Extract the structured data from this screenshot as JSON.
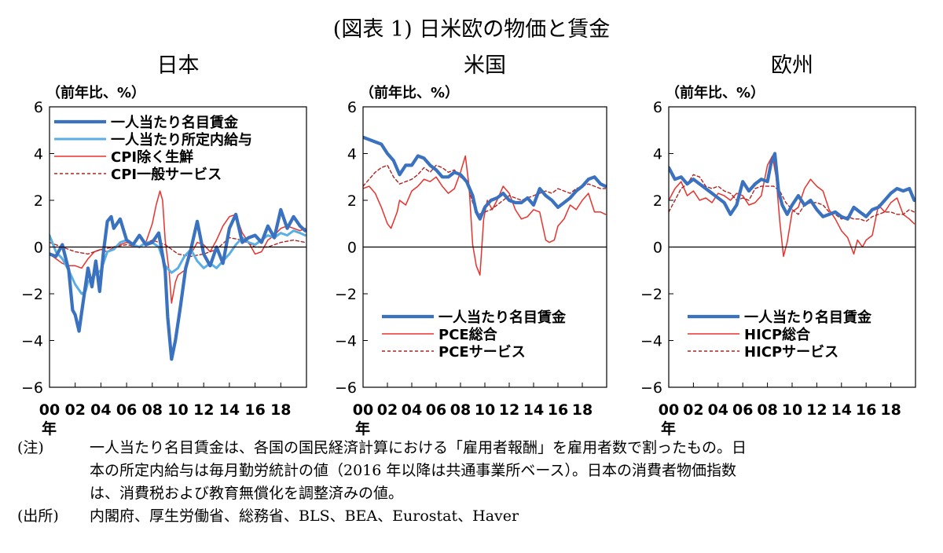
{
  "figure": {
    "title": "(図表 1) 日米欧の物価と賃金",
    "x_unit_label": "年",
    "y_unit_label": "（前年比、%）"
  },
  "notes": {
    "note_label": "(注)",
    "note_lines": [
      "一人当たり名目賃金は、各国の国民経済計算における「雇用者報酬」を雇用者数で割ったもの。日",
      "本の所定内給与は毎月勤労統計の値（2016 年以降は共通事業所ベース）。日本の消費者物価指数",
      "は、消費税および教育無償化を調整済みの値。"
    ],
    "source_label": "(出所)",
    "source_text": "内閣府、厚生労働省、総務省、BLS、BEA、Eurostat、Haver"
  },
  "colors": {
    "wage": "#3a72bf",
    "scheduled": "#5aaee3",
    "price": "#e8322d",
    "service": "#b02420",
    "axis": "#000000"
  },
  "chart_data": [
    {
      "type": "line",
      "title": "日本",
      "ylabel": "（前年比、%）",
      "xlabel": "年",
      "ylim": [
        -6,
        6
      ],
      "yticks": [
        6,
        4,
        2,
        0,
        -2,
        -4,
        -6
      ],
      "xlim": [
        2000,
        2020
      ],
      "xticks": [
        "00",
        "02",
        "04",
        "06",
        "08",
        "10",
        "12",
        "14",
        "16",
        "18"
      ],
      "legend_position": "top-left",
      "series": [
        {
          "name": "一人当たり名目賃金",
          "style": "wage",
          "x": [
            2000,
            2000.5,
            2001,
            2001.5,
            2001.8,
            2002,
            2002.3,
            2002.5,
            2003,
            2003.3,
            2003.6,
            2003.9,
            2004.2,
            2004.5,
            2004.8,
            2005,
            2005.5,
            2006,
            2006.5,
            2007,
            2007.5,
            2008,
            2008.5,
            2009,
            2009.2,
            2009.5,
            2009.8,
            2010.2,
            2010.6,
            2011,
            2011.5,
            2012,
            2012.5,
            2013,
            2013.5,
            2014,
            2014.5,
            2015,
            2015.5,
            2016,
            2016.5,
            2017,
            2017.5,
            2018,
            2018.5,
            2019,
            2019.5,
            2019.9
          ],
          "y": [
            -0.3,
            -0.4,
            0.1,
            -1.0,
            -2.7,
            -2.9,
            -3.6,
            -2.8,
            -0.9,
            -1.7,
            -0.6,
            -1.9,
            -0.2,
            1.1,
            1.3,
            0.8,
            1.2,
            0.3,
            0.1,
            0.5,
            0.1,
            0.2,
            0.6,
            -1.0,
            -3.0,
            -4.8,
            -4.0,
            -2.5,
            -0.9,
            -0.1,
            1.1,
            -0.3,
            -0.8,
            0.0,
            -0.7,
            0.8,
            1.4,
            0.2,
            0.4,
            0.5,
            0.2,
            0.9,
            0.4,
            1.6,
            0.8,
            1.3,
            0.9,
            0.7
          ]
        },
        {
          "name": "一人当たり所定内給与",
          "style": "scheduled",
          "x": [
            2000,
            2000.5,
            2001,
            2001.5,
            2002,
            2002.5,
            2002.8,
            2003,
            2003.5,
            2004,
            2004.5,
            2005,
            2005.5,
            2006,
            2006.5,
            2007,
            2007.5,
            2008,
            2008.5,
            2009,
            2009.5,
            2010,
            2010.5,
            2011,
            2011.5,
            2012,
            2012.5,
            2013,
            2013.5,
            2014,
            2014.5,
            2015,
            2015.5,
            2016,
            2016.5,
            2017,
            2017.5,
            2018,
            2018.5,
            2019,
            2019.5,
            2019.9
          ],
          "y": [
            0.5,
            -0.2,
            -0.5,
            -1.0,
            -1.6,
            -2.0,
            -1.9,
            -1.5,
            -1.2,
            -1.0,
            -0.2,
            -0.1,
            0.2,
            0.3,
            0.1,
            0.0,
            0.2,
            0.2,
            0.0,
            -0.8,
            -1.1,
            -0.9,
            -0.4,
            -0.1,
            -0.6,
            -0.9,
            -0.7,
            -0.9,
            -0.6,
            -0.3,
            0.1,
            0.4,
            0.2,
            0.1,
            0.3,
            0.5,
            0.4,
            0.6,
            0.5,
            0.7,
            0.6,
            0.5
          ]
        },
        {
          "name": "CPI除く生鮮",
          "style": "price",
          "x": [
            2000,
            2000.5,
            2001,
            2001.5,
            2002,
            2002.5,
            2003,
            2003.5,
            2004,
            2004.5,
            2005,
            2005.5,
            2006,
            2006.5,
            2007,
            2007.5,
            2008,
            2008.3,
            2008.6,
            2008.8,
            2009,
            2009.3,
            2009.5,
            2009.8,
            2010,
            2010.5,
            2011,
            2011.5,
            2012,
            2012.5,
            2013,
            2013.5,
            2014,
            2014.5,
            2015,
            2015.5,
            2016,
            2016.5,
            2017,
            2017.5,
            2018,
            2018.5,
            2019,
            2019.5,
            2019.9
          ],
          "y": [
            -0.3,
            -0.5,
            -0.7,
            -0.8,
            -0.8,
            -0.9,
            -0.5,
            -0.2,
            -0.1,
            -0.2,
            0.0,
            0.1,
            0.2,
            0.1,
            0.0,
            0.2,
            1.0,
            1.8,
            2.4,
            2.0,
            0.3,
            -1.0,
            -2.4,
            -1.5,
            -1.2,
            -1.0,
            -0.3,
            0.2,
            0.1,
            -0.2,
            0.3,
            0.9,
            1.3,
            1.4,
            0.6,
            0.2,
            -0.3,
            -0.2,
            0.3,
            0.5,
            0.8,
            0.9,
            0.8,
            0.7,
            0.8
          ]
        },
        {
          "name": "CPI一般サービス",
          "style": "service",
          "x": [
            2000,
            2001,
            2002,
            2003,
            2004,
            2005,
            2006,
            2007,
            2008,
            2009,
            2010,
            2011,
            2012,
            2013,
            2014,
            2015,
            2016,
            2017,
            2018,
            2019,
            2019.9
          ],
          "y": [
            0.2,
            0.0,
            -0.2,
            -0.3,
            -0.1,
            0.0,
            0.1,
            0.0,
            0.3,
            0.1,
            -0.3,
            -0.4,
            -0.3,
            -0.1,
            0.4,
            0.3,
            0.0,
            0.0,
            0.2,
            0.3,
            0.2
          ]
        }
      ]
    },
    {
      "type": "line",
      "title": "米国",
      "ylabel": "（前年比、%）",
      "xlabel": "年",
      "ylim": [
        -6,
        6
      ],
      "yticks": [
        6,
        4,
        2,
        0,
        -2,
        -4,
        -6
      ],
      "xlim": [
        2000,
        2020
      ],
      "xticks": [
        "00",
        "02",
        "04",
        "06",
        "08",
        "10",
        "12",
        "14",
        "16",
        "18"
      ],
      "legend_position": "bottom-left",
      "series": [
        {
          "name": "一人当たり名目賃金",
          "style": "wage",
          "x": [
            2000,
            2000.5,
            2001,
            2001.5,
            2002,
            2002.5,
            2003,
            2003.5,
            2004,
            2004.5,
            2005,
            2005.5,
            2006,
            2006.5,
            2007,
            2007.5,
            2008,
            2008.5,
            2009,
            2009.3,
            2009.6,
            2010,
            2010.5,
            2011,
            2011.5,
            2012,
            2012.5,
            2013,
            2013.5,
            2014,
            2014.5,
            2015,
            2015.5,
            2016,
            2016.5,
            2017,
            2017.5,
            2018,
            2018.5,
            2019,
            2019.5,
            2019.9
          ],
          "y": [
            4.7,
            4.6,
            4.5,
            4.4,
            4.0,
            3.7,
            3.1,
            3.5,
            3.5,
            3.9,
            3.8,
            3.5,
            3.3,
            3.0,
            3.0,
            3.2,
            3.1,
            2.8,
            2.2,
            1.5,
            1.2,
            1.7,
            2.0,
            2.1,
            2.3,
            2.0,
            1.9,
            1.9,
            2.1,
            1.8,
            2.5,
            2.2,
            2.0,
            1.7,
            1.9,
            2.1,
            2.4,
            2.6,
            2.9,
            3.0,
            2.7,
            2.6
          ]
        },
        {
          "name": "PCE総合",
          "style": "price",
          "x": [
            2000,
            2000.5,
            2001,
            2001.5,
            2002,
            2002.3,
            2002.8,
            2003,
            2003.5,
            2004,
            2004.5,
            2005,
            2005.5,
            2006,
            2006.5,
            2007,
            2007.5,
            2008,
            2008.4,
            2008.7,
            2009,
            2009.3,
            2009.6,
            2009.9,
            2010.2,
            2010.6,
            2011,
            2011.5,
            2012,
            2012.5,
            2013,
            2013.5,
            2014,
            2014.5,
            2015,
            2015.3,
            2015.7,
            2016,
            2016.5,
            2017,
            2017.5,
            2018,
            2018.5,
            2019,
            2019.5,
            2019.9
          ],
          "y": [
            2.5,
            2.6,
            2.3,
            1.7,
            1.0,
            0.8,
            1.5,
            2.0,
            1.8,
            2.4,
            2.6,
            2.9,
            2.8,
            3.0,
            2.6,
            2.3,
            2.5,
            3.2,
            3.9,
            2.6,
            0.1,
            -0.8,
            -1.2,
            1.2,
            2.0,
            1.6,
            2.0,
            2.6,
            2.3,
            1.6,
            1.2,
            1.3,
            1.6,
            1.5,
            0.3,
            0.2,
            0.3,
            0.9,
            1.2,
            1.8,
            1.6,
            2.0,
            2.3,
            1.5,
            1.5,
            1.4
          ]
        },
        {
          "name": "PCEサービス",
          "style": "service",
          "x": [
            2000,
            2000.5,
            2001,
            2001.5,
            2002,
            2002.5,
            2003,
            2003.5,
            2004,
            2004.5,
            2005,
            2005.5,
            2006,
            2006.5,
            2007,
            2007.5,
            2008,
            2008.5,
            2009,
            2009.5,
            2010,
            2010.5,
            2011,
            2011.5,
            2012,
            2012.5,
            2013,
            2013.5,
            2014,
            2014.5,
            2015,
            2015.5,
            2016,
            2016.5,
            2017,
            2017.5,
            2018,
            2018.5,
            2019,
            2019.5,
            2019.9
          ],
          "y": [
            2.6,
            2.9,
            3.2,
            3.4,
            3.5,
            3.0,
            2.7,
            2.8,
            2.9,
            3.1,
            3.4,
            3.2,
            3.5,
            3.4,
            3.2,
            3.3,
            3.0,
            2.8,
            1.9,
            1.4,
            1.5,
            1.6,
            1.8,
            2.0,
            2.2,
            2.1,
            2.0,
            2.1,
            2.2,
            2.3,
            2.4,
            2.3,
            2.5,
            2.4,
            2.3,
            2.5,
            2.6,
            2.7,
            2.6,
            2.5,
            2.5
          ]
        }
      ]
    },
    {
      "type": "line",
      "title": "欧州",
      "ylabel": "（前年比、%）",
      "xlabel": "年",
      "ylim": [
        -6,
        6
      ],
      "yticks": [
        6,
        4,
        2,
        0,
        -2,
        -4,
        -6
      ],
      "xlim": [
        2000,
        2020
      ],
      "xticks": [
        "00",
        "02",
        "04",
        "06",
        "08",
        "10",
        "12",
        "14",
        "16",
        "18"
      ],
      "legend_position": "bottom-left",
      "series": [
        {
          "name": "一人当たり名目賃金",
          "style": "wage",
          "x": [
            2000,
            2000.5,
            2001,
            2001.5,
            2002,
            2002.5,
            2003,
            2003.5,
            2004,
            2004.5,
            2005,
            2005.5,
            2006,
            2006.5,
            2007,
            2007.5,
            2008,
            2008.3,
            2008.6,
            2008.9,
            2009.2,
            2009.6,
            2010,
            2010.5,
            2011,
            2011.5,
            2012,
            2012.5,
            2013,
            2013.5,
            2014,
            2014.5,
            2015,
            2015.5,
            2016,
            2016.5,
            2017,
            2017.5,
            2018,
            2018.5,
            2019,
            2019.5,
            2019.9
          ],
          "y": [
            3.4,
            2.9,
            3.0,
            2.7,
            2.9,
            2.7,
            2.5,
            2.3,
            2.1,
            1.9,
            1.4,
            1.8,
            2.8,
            2.4,
            2.7,
            2.9,
            2.8,
            3.6,
            4.0,
            2.4,
            1.8,
            1.4,
            1.8,
            2.2,
            1.8,
            2.0,
            1.6,
            1.3,
            1.4,
            1.5,
            1.3,
            1.2,
            1.7,
            1.5,
            1.3,
            1.6,
            1.7,
            2.0,
            2.3,
            2.5,
            2.4,
            2.5,
            2.0
          ]
        },
        {
          "name": "HICP総合",
          "style": "price",
          "x": [
            2000,
            2000.5,
            2001,
            2001.5,
            2002,
            2002.5,
            2003,
            2003.5,
            2004,
            2004.5,
            2005,
            2005.5,
            2006,
            2006.5,
            2007,
            2007.5,
            2008,
            2008.4,
            2008.7,
            2009,
            2009.3,
            2009.6,
            2010,
            2010.5,
            2011,
            2011.5,
            2012,
            2012.5,
            2013,
            2013.5,
            2014,
            2014.5,
            2015,
            2015.3,
            2015.7,
            2016,
            2016.5,
            2017,
            2017.5,
            2018,
            2018.5,
            2019,
            2019.5,
            2019.9
          ],
          "y": [
            2.0,
            2.5,
            2.8,
            2.2,
            2.4,
            2.0,
            2.1,
            1.9,
            2.3,
            2.2,
            2.0,
            2.3,
            2.2,
            1.8,
            1.9,
            2.2,
            3.5,
            3.9,
            3.0,
            1.1,
            -0.4,
            0.2,
            1.5,
            1.7,
            2.5,
            2.9,
            2.6,
            2.4,
            1.6,
            1.2,
            0.7,
            0.4,
            -0.3,
            0.3,
            0.0,
            0.3,
            0.5,
            1.8,
            1.5,
            1.9,
            2.1,
            1.4,
            1.2,
            1.0
          ]
        },
        {
          "name": "HICPサービス",
          "style": "service",
          "x": [
            2000,
            2000.5,
            2001,
            2001.5,
            2002,
            2002.5,
            2003,
            2003.5,
            2004,
            2004.5,
            2005,
            2005.5,
            2006,
            2006.5,
            2007,
            2007.5,
            2008,
            2008.5,
            2009,
            2009.5,
            2010,
            2010.5,
            2011,
            2011.5,
            2012,
            2012.5,
            2013,
            2013.5,
            2014,
            2014.5,
            2015,
            2015.5,
            2016,
            2016.5,
            2017,
            2017.5,
            2018,
            2018.5,
            2019,
            2019.5,
            2019.9
          ],
          "y": [
            1.5,
            2.0,
            2.5,
            2.7,
            3.1,
            3.0,
            2.6,
            2.5,
            2.6,
            2.4,
            2.3,
            2.0,
            2.1,
            2.0,
            2.5,
            2.6,
            2.6,
            2.6,
            2.4,
            1.9,
            1.6,
            1.4,
            1.8,
            1.9,
            1.9,
            1.8,
            1.5,
            1.4,
            1.2,
            1.3,
            1.2,
            1.2,
            1.1,
            1.3,
            1.4,
            1.5,
            1.5,
            1.4,
            1.4,
            1.6,
            1.5
          ]
        }
      ]
    }
  ]
}
